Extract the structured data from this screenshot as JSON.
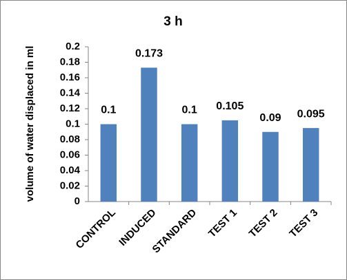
{
  "chart_data": {
    "type": "bar",
    "title": "3 h",
    "y_label": "volume of water displaced in ml",
    "categories": [
      "CONTROL",
      "INDUCED",
      "STANDARD",
      "TEST 1",
      "TEST 2",
      "TEST 3"
    ],
    "values": [
      0.1,
      0.173,
      0.1,
      0.105,
      0.09,
      0.095
    ],
    "color": "#4f81bd",
    "ylim": [
      0,
      0.2
    ],
    "yticks": [
      0,
      0.02,
      0.04,
      0.06,
      0.08,
      0.1,
      0.12,
      0.14,
      0.16,
      0.18,
      0.2
    ],
    "grid": false
  }
}
